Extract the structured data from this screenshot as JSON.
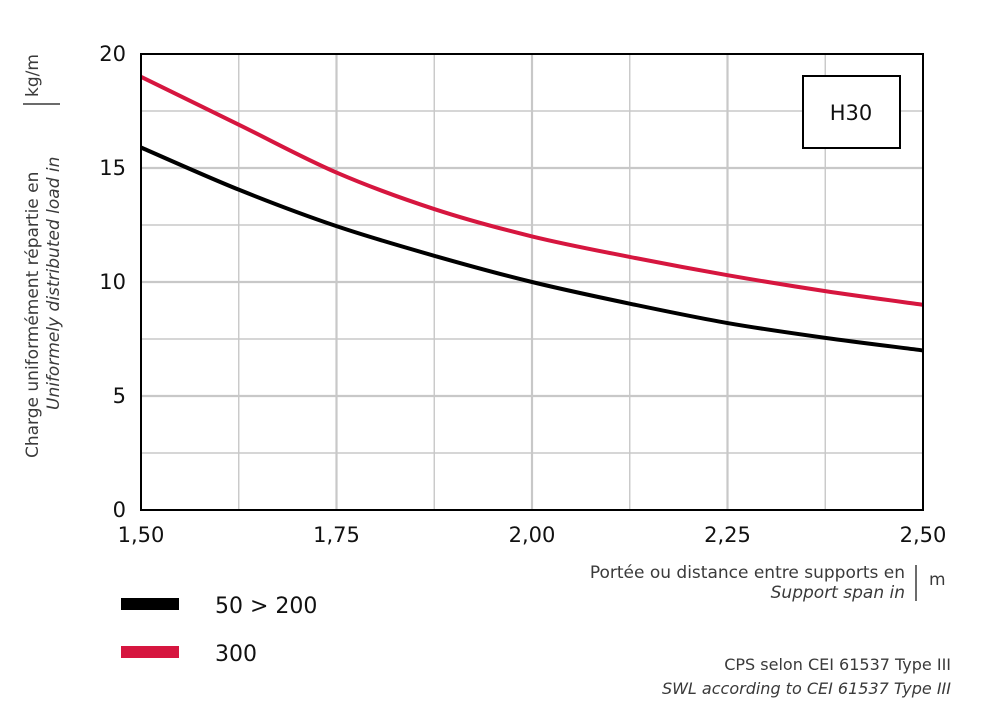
{
  "colors": {
    "series_1": "#000000",
    "series_2": "#d6163f",
    "grid": "#c8c8c8",
    "axis": "#000000"
  },
  "chart_data": {
    "type": "line",
    "badge": "H30",
    "ylabel_fr": "Charge uniformément répartie en",
    "ylabel_en": "Uniformely distributed load in",
    "yunit": "kg/m",
    "xlabel_fr": "Portée ou distance entre supports en",
    "xlabel_en": "Support span in",
    "xunit": "m",
    "xlim": [
      1.5,
      2.5
    ],
    "ylim": [
      0,
      20
    ],
    "xticks": [
      1.5,
      1.75,
      2.0,
      2.25,
      2.5
    ],
    "xtick_labels": [
      "1,50",
      "1,75",
      "2,00",
      "2,25",
      "2,50"
    ],
    "yticks": [
      0,
      5,
      10,
      15,
      20
    ],
    "ytick_labels": [
      "0",
      "5",
      "10",
      "15",
      "20"
    ],
    "x_minor_step": 0.125,
    "y_minor_step": 2.5,
    "grid": true,
    "legend_position": "bottom-left",
    "series": [
      {
        "name": "50 > 200",
        "color": "#000000",
        "x": [
          1.5,
          1.625,
          1.75,
          1.875,
          2.0,
          2.125,
          2.25,
          2.375,
          2.5
        ],
        "values": [
          15.9,
          14.05,
          12.45,
          11.15,
          10.0,
          9.05,
          8.2,
          7.55,
          7.0
        ]
      },
      {
        "name": "300",
        "color": "#d6163f",
        "x": [
          1.5,
          1.625,
          1.75,
          1.875,
          2.0,
          2.125,
          2.25,
          2.375,
          2.5
        ],
        "values": [
          19.0,
          16.9,
          14.8,
          13.2,
          12.0,
          11.1,
          10.3,
          9.6,
          9.0
        ]
      }
    ],
    "footnote_fr": "CPS selon CEI 61537 Type III",
    "footnote_en": "SWL according to CEI 61537 Type III"
  }
}
